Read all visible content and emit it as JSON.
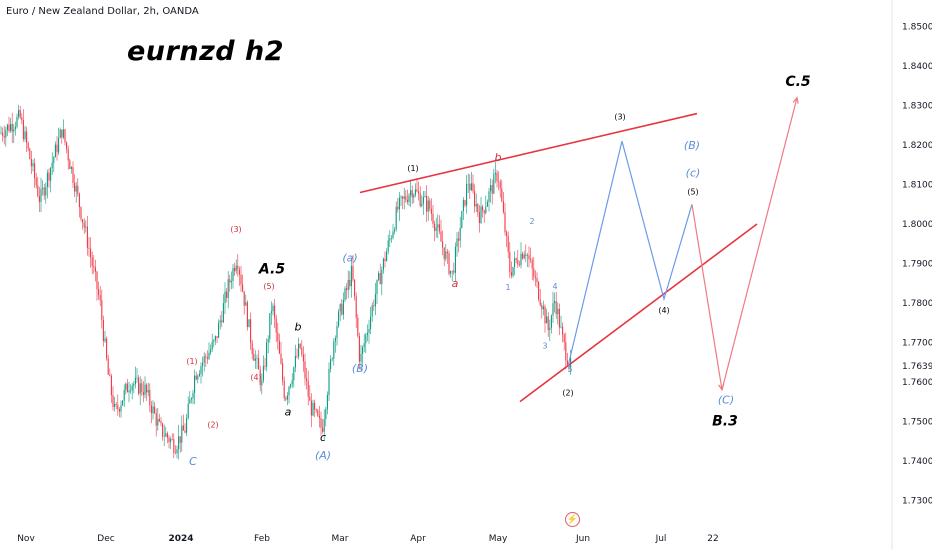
{
  "symbol": "Euro / New Zealand Dollar, 2h, OANDA",
  "title": "eurnzd h2",
  "colors": {
    "up": "#089981",
    "down": "#f23645",
    "red_line": "#e8343f",
    "blue_path": "#6a9be8",
    "red_path": "#f07a82",
    "blue_label": "#5b8dd6",
    "red_label": "#d0313b",
    "axis_text": "#131722"
  },
  "chart_data": {
    "type": "candlestick",
    "ylim": [
      1.725,
      1.855
    ],
    "y_ticks": [
      "1.85000",
      "1.84000",
      "1.83000",
      "1.82000",
      "1.81000",
      "1.80000",
      "1.79000",
      "1.78000",
      "1.77000",
      "1.76000",
      "1.75000",
      "1.74000",
      "1.73000"
    ],
    "current_price": "1.76397",
    "x_labels": [
      "Nov",
      "Dec",
      "2024",
      "Feb",
      "Mar",
      "Apr",
      "May",
      "Jun",
      "Jul",
      "22"
    ],
    "price_anchors": [
      {
        "t": 0,
        "p": 1.823
      },
      {
        "t": 20,
        "p": 1.827
      },
      {
        "t": 40,
        "p": 1.806
      },
      {
        "t": 55,
        "p": 1.818
      },
      {
        "t": 62,
        "p": 1.824
      },
      {
        "t": 75,
        "p": 1.81
      },
      {
        "t": 88,
        "p": 1.795
      },
      {
        "t": 100,
        "p": 1.78
      },
      {
        "t": 108,
        "p": 1.762
      },
      {
        "t": 115,
        "p": 1.752
      },
      {
        "t": 130,
        "p": 1.76
      },
      {
        "t": 145,
        "p": 1.758
      },
      {
        "t": 160,
        "p": 1.748
      },
      {
        "t": 175,
        "p": 1.744
      },
      {
        "t": 185,
        "p": 1.748
      },
      {
        "t": 195,
        "p": 1.762
      },
      {
        "t": 215,
        "p": 1.77
      },
      {
        "t": 228,
        "p": 1.784
      },
      {
        "t": 237,
        "p": 1.792
      },
      {
        "t": 252,
        "p": 1.769
      },
      {
        "t": 262,
        "p": 1.759
      },
      {
        "t": 272,
        "p": 1.78
      },
      {
        "t": 285,
        "p": 1.756
      },
      {
        "t": 300,
        "p": 1.769
      },
      {
        "t": 310,
        "p": 1.754
      },
      {
        "t": 322,
        "p": 1.748
      },
      {
        "t": 335,
        "p": 1.773
      },
      {
        "t": 352,
        "p": 1.788
      },
      {
        "t": 360,
        "p": 1.765
      },
      {
        "t": 375,
        "p": 1.782
      },
      {
        "t": 398,
        "p": 1.804
      },
      {
        "t": 412,
        "p": 1.809
      },
      {
        "t": 430,
        "p": 1.804
      },
      {
        "t": 452,
        "p": 1.787
      },
      {
        "t": 468,
        "p": 1.811
      },
      {
        "t": 480,
        "p": 1.802
      },
      {
        "t": 498,
        "p": 1.813
      },
      {
        "t": 510,
        "p": 1.788
      },
      {
        "t": 525,
        "p": 1.794
      },
      {
        "t": 542,
        "p": 1.78
      },
      {
        "t": 548,
        "p": 1.773
      },
      {
        "t": 555,
        "p": 1.781
      },
      {
        "t": 563,
        "p": 1.77
      },
      {
        "t": 570,
        "p": 1.764
      }
    ],
    "channel_lines": [
      {
        "from": [
          360,
          1.808
        ],
        "to": [
          697,
          1.828
        ]
      },
      {
        "from": [
          520,
          1.755
        ],
        "to": [
          757,
          1.8
        ]
      }
    ],
    "projection_blue": [
      [
        568,
        1.764
      ],
      [
        622,
        1.821
      ],
      [
        664,
        1.781
      ],
      [
        692,
        1.805
      ]
    ],
    "projection_red": [
      [
        692,
        1.805
      ],
      [
        722,
        1.758
      ],
      [
        797,
        1.832
      ]
    ],
    "wave_labels": [
      {
        "text": "(1)",
        "t": 413,
        "p": 1.8135,
        "color": "black",
        "size": "s"
      },
      {
        "text": "(2)",
        "t": 568,
        "p": 1.7565,
        "color": "black",
        "size": "s"
      },
      {
        "text": "(3)",
        "t": 620,
        "p": 1.8265,
        "color": "black",
        "size": "s"
      },
      {
        "text": "(4)",
        "t": 664,
        "p": 1.7775,
        "color": "black",
        "size": "s"
      },
      {
        "text": "(5)",
        "t": 693,
        "p": 1.8075,
        "color": "black",
        "size": "s"
      },
      {
        "text": "b",
        "t": 498,
        "p": 1.816,
        "color": "red",
        "size": "m"
      },
      {
        "text": "a",
        "t": 455,
        "p": 1.784,
        "color": "red",
        "size": "m"
      },
      {
        "text": "(a)",
        "t": 350,
        "p": 1.7905,
        "color": "blue",
        "size": "m"
      },
      {
        "text": "(B)",
        "t": 360,
        "p": 1.7625,
        "color": "blue",
        "size": "m"
      },
      {
        "text": "(A)",
        "t": 323,
        "p": 1.7405,
        "color": "blue",
        "size": "m"
      },
      {
        "text": "(B)",
        "t": 692,
        "p": 1.819,
        "color": "blue",
        "size": "m"
      },
      {
        "text": "(c)",
        "t": 693,
        "p": 1.812,
        "color": "blue",
        "size": "m"
      },
      {
        "text": "(C)",
        "t": 726,
        "p": 1.7545,
        "color": "blue",
        "size": "m"
      },
      {
        "text": "C",
        "t": 193,
        "p": 1.739,
        "color": "blue",
        "size": "m"
      },
      {
        "text": "1",
        "t": 508,
        "p": 1.7833,
        "color": "blue",
        "size": "s"
      },
      {
        "text": "2",
        "t": 532,
        "p": 1.8,
        "color": "blue",
        "size": "s"
      },
      {
        "text": "3",
        "t": 545,
        "p": 1.7685,
        "color": "blue",
        "size": "s"
      },
      {
        "text": "4",
        "t": 555,
        "p": 1.7835,
        "color": "blue",
        "size": "s"
      },
      {
        "text": "5",
        "t": 570,
        "p": 1.7625,
        "color": "blue",
        "size": "s"
      },
      {
        "text": "(3)",
        "t": 236,
        "p": 1.798,
        "color": "red",
        "size": "s"
      },
      {
        "text": "(5)",
        "t": 269,
        "p": 1.7835,
        "color": "red",
        "size": "s"
      },
      {
        "text": "(4)",
        "t": 256,
        "p": 1.7605,
        "color": "red",
        "size": "s"
      },
      {
        "text": "(1)",
        "t": 192,
        "p": 1.7645,
        "color": "red",
        "size": "s"
      },
      {
        "text": "(2)",
        "t": 213,
        "p": 1.7485,
        "color": "red",
        "size": "s"
      },
      {
        "text": "A.5",
        "t": 272,
        "p": 1.7875,
        "color": "black",
        "size": "l"
      },
      {
        "text": "b",
        "t": 298,
        "p": 1.773,
        "color": "black",
        "size": "m"
      },
      {
        "text": "a",
        "t": 288,
        "p": 1.7515,
        "color": "black",
        "size": "m"
      },
      {
        "text": "c",
        "t": 323,
        "p": 1.745,
        "color": "black",
        "size": "m"
      },
      {
        "text": "B.3",
        "t": 725,
        "p": 1.749,
        "color": "black",
        "size": "l"
      },
      {
        "text": "C.5",
        "t": 798,
        "p": 1.835,
        "color": "black",
        "size": "l"
      }
    ]
  }
}
